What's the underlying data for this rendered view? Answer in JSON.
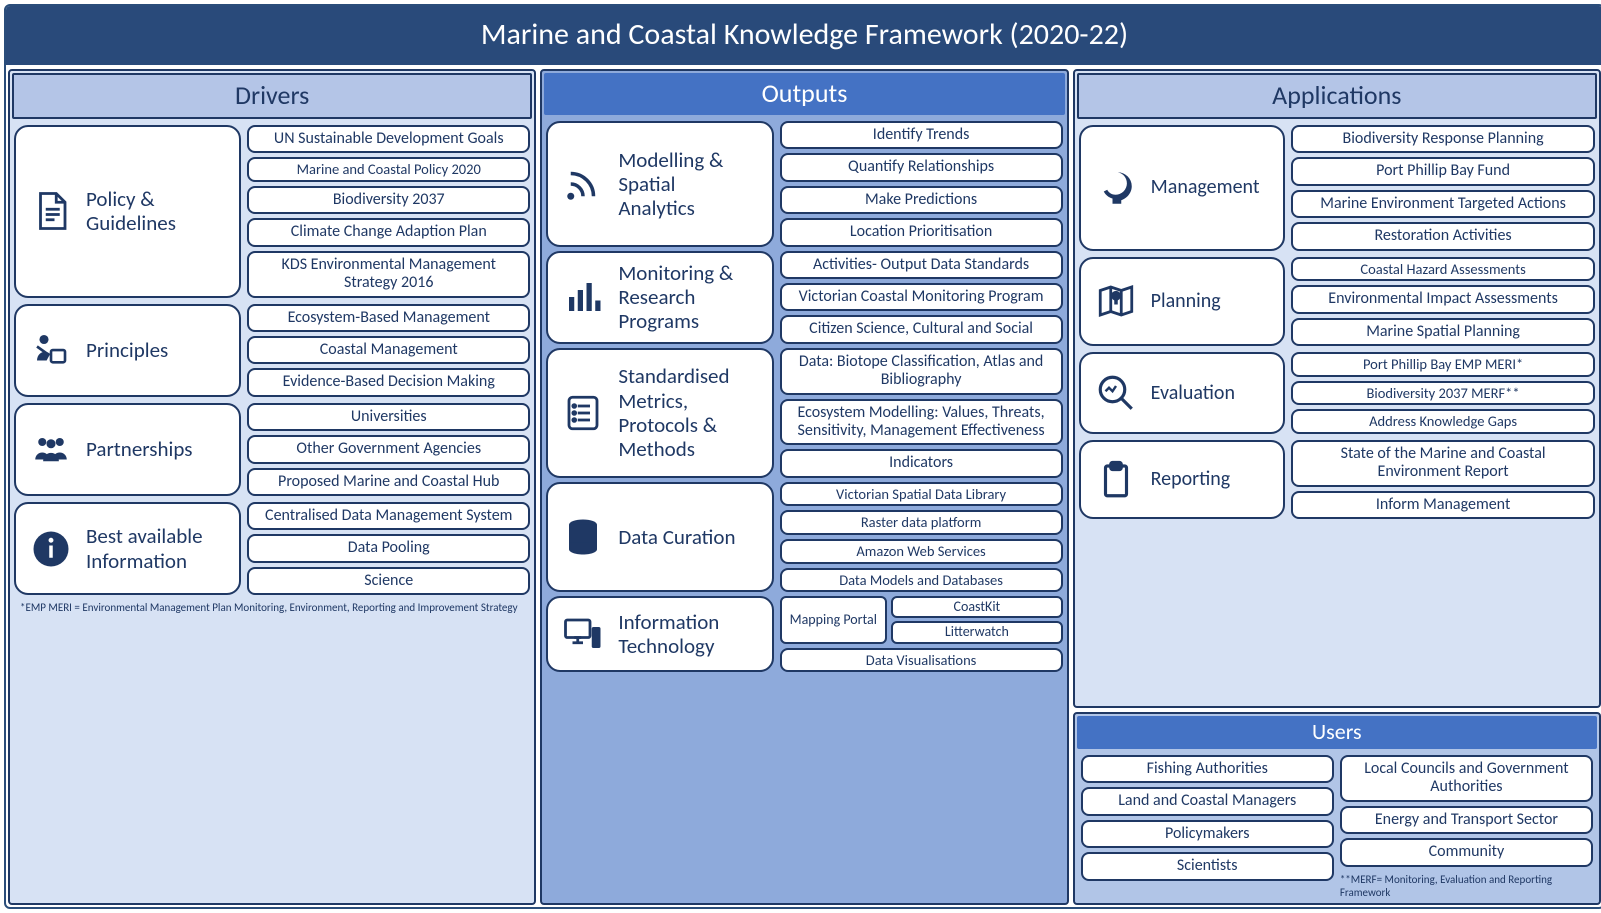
{
  "title": "Marine and Coastal Knowledge Framework (2020-22)",
  "colors": {
    "frame_border": "#2a4d7a",
    "title_bg": "#294a7a",
    "title_fg": "#ffffff",
    "dark": "#1f3864",
    "col_light_bg": "#d7e2f4",
    "col_mid_bg": "#8eaadb",
    "col_users_bg": "#b1c5e7",
    "head_light_bg": "#b4c5e7",
    "head_dark_bg": "#4472c4",
    "card_bg": "#ffffff"
  },
  "columns": {
    "drivers": {
      "title": "Drivers",
      "groups": [
        {
          "icon": "document",
          "label": "Policy &\nGuidelines",
          "items": [
            "UN Sustainable Development Goals",
            "Marine and Coastal Policy 2020",
            "Biodiversity 2037",
            "Climate Change Adaption Plan",
            "KDS Environmental Management Strategy 2016"
          ]
        },
        {
          "icon": "person-board",
          "label": "Principles",
          "items": [
            "Ecosystem-Based Management",
            "Coastal Management",
            "Evidence-Based Decision Making"
          ]
        },
        {
          "icon": "people",
          "label": "Partnerships",
          "items": [
            "Universities",
            "Other Government Agencies",
            "Proposed Marine and Coastal Hub"
          ]
        },
        {
          "icon": "info",
          "label": "Best available\nInformation",
          "items": [
            "Centralised Data Management System",
            "Data Pooling",
            "Science"
          ]
        }
      ],
      "footnote": "*EMP MERI = Environmental Management Plan Monitoring, Environment, Reporting and Improvement Strategy"
    },
    "outputs": {
      "title": "Outputs",
      "groups": [
        {
          "icon": "signal",
          "label": "Modelling &\nSpatial\nAnalytics",
          "items": [
            "Identify Trends",
            "Quantify Relationships",
            "Make Predictions",
            "Location Prioritisation"
          ]
        },
        {
          "icon": "bar-chart",
          "label": "Monitoring &\nResearch\nPrograms",
          "items": [
            "Activities- Output Data Standards",
            "Victorian Coastal Monitoring Program",
            "Citizen Science, Cultural and Social"
          ]
        },
        {
          "icon": "checklist",
          "label": "Standardised\nMetrics,\nProtocols &\nMethods",
          "items": [
            "Data: Biotope Classification, Atlas and Bibliography",
            "Ecosystem Modelling: Values, Threats, Sensitivity, Management Effectiveness",
            "Indicators"
          ]
        },
        {
          "icon": "database",
          "label": "Data Curation",
          "items": [
            "Victorian Spatial Data Library",
            "Raster data platform",
            "Amazon Web Services",
            "Data Models and Databases"
          ]
        },
        {
          "icon": "computer",
          "label": "Information\nTechnology",
          "it_special": {
            "mapping_portal": "Mapping Portal",
            "sub_items": [
              "CoastKit",
              "Litterwatch"
            ],
            "bottom": "Data Visualisations"
          }
        }
      ]
    },
    "applications": {
      "title": "Applications",
      "groups": [
        {
          "icon": "gear-head",
          "label": "Management",
          "items": [
            "Biodiversity Response Planning",
            "Port Phillip Bay Fund",
            "Marine Environment Targeted Actions",
            "Restoration Activities"
          ]
        },
        {
          "icon": "map",
          "label": "Planning",
          "items": [
            "Coastal Hazard Assessments",
            "Environmental Impact Assessments",
            "Marine Spatial Planning"
          ]
        },
        {
          "icon": "magnify",
          "label": "Evaluation",
          "items": [
            "Port Phillip Bay EMP MERI*",
            "Biodiversity 2037 MERF**",
            "Address Knowledge Gaps"
          ]
        },
        {
          "icon": "clipboard",
          "label": "Reporting",
          "items": [
            "State of the Marine and Coastal Environment Report",
            "Inform Management"
          ]
        }
      ]
    },
    "users": {
      "title": "Users",
      "left": [
        "Fishing Authorities",
        "Land and Coastal Managers",
        "Policymakers",
        "Scientists"
      ],
      "right": [
        "Local Councils and Government Authorities",
        "Energy and Transport Sector",
        "Community"
      ],
      "footnote": "**MERF= Monitoring, Evaluation and Reporting Framework"
    }
  }
}
